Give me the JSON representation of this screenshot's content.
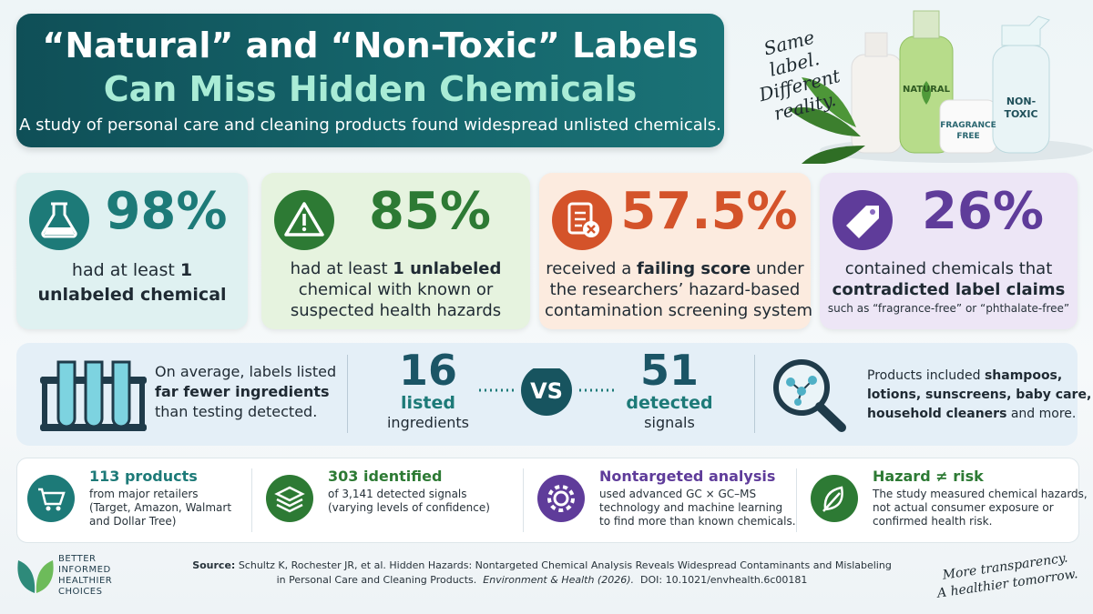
{
  "header": {
    "title_line1": "“Natural” and “Non-Toxic” Labels",
    "title_line2": "Can Miss Hidden Chemicals",
    "subtitle": "A study of personal care and cleaning products found widespread unlisted chemicals."
  },
  "hero": {
    "tagline": [
      "Same label.",
      "Different",
      "reality."
    ],
    "bottle_labels": [
      "NATURAL",
      "FRAGRANCE",
      "FREE",
      "NON-",
      "TOXIC"
    ]
  },
  "stats": [
    {
      "value": "98%",
      "color": "#1d7a78",
      "background": "#dff1f1",
      "lines": [
        [
          {
            "text": "had at least ",
            "bold": false
          },
          {
            "text": "1",
            "bold": true
          }
        ],
        [
          {
            "text": "unlabeled chemical",
            "bold": true
          }
        ]
      ]
    },
    {
      "value": "85%",
      "color": "#2d7a34",
      "background": "#e6f3df",
      "lines": [
        [
          {
            "text": "had at least ",
            "bold": false
          },
          {
            "text": "1 unlabeled",
            "bold": true
          }
        ],
        [
          {
            "text": "chemical with known or",
            "bold": false
          }
        ],
        [
          {
            "text": "suspected health hazards",
            "bold": false
          }
        ]
      ]
    },
    {
      "value": "57.5%",
      "color": "#d4532a",
      "background": "#fcebdf",
      "lines": [
        [
          {
            "text": "received a ",
            "bold": false
          },
          {
            "text": "failing score",
            "bold": true
          },
          {
            "text": " under",
            "bold": false
          }
        ],
        [
          {
            "text": "the researchers’ hazard-based",
            "bold": false
          }
        ],
        [
          {
            "text": "contamination screening system",
            "bold": false
          }
        ]
      ]
    },
    {
      "value": "26%",
      "color": "#5f3c9a",
      "background": "#ede6f6",
      "lines": [
        [
          {
            "text": "contained chemicals that",
            "bold": false
          }
        ],
        [
          {
            "text": "contradicted label claims",
            "bold": true
          }
        ]
      ],
      "note": "such as “fragrance-free” or “phthalate-free”"
    }
  ],
  "comparison": {
    "left": [
      [
        {
          "text": "On average, labels listed",
          "bold": false
        }
      ],
      [
        {
          "text": "far fewer ingredients",
          "bold": true
        }
      ],
      [
        {
          "text": "than testing detected.",
          "bold": false
        }
      ]
    ],
    "listed": {
      "value": "16",
      "label1": "listed",
      "label2": "ingredients"
    },
    "vs": "VS",
    "detected": {
      "value": "51",
      "label1": "detected",
      "label2": "signals"
    },
    "right": [
      [
        {
          "text": "Products included ",
          "bold": false
        },
        {
          "text": "shampoos,",
          "bold": true
        }
      ],
      [
        {
          "text": "lotions, sunscreens, baby care,",
          "bold": true
        }
      ],
      [
        {
          "text": "household cleaners",
          "bold": true
        },
        {
          "text": " and more.",
          "bold": false
        }
      ]
    ]
  },
  "facts": [
    {
      "title": "113 products",
      "color": "#1d7a78",
      "lines": [
        "from major retailers",
        "(Target, Amazon, Walmart",
        "and Dollar Tree)"
      ]
    },
    {
      "title": "303 identified",
      "color": "#2d7a34",
      "lines": [
        "of 3,141 detected signals",
        "(varying levels of confidence)"
      ]
    },
    {
      "title": "Nontargeted analysis",
      "color": "#5f3c9a",
      "lines": [
        "used advanced GC × GC–MS",
        "technology and machine learning",
        "to find more than known chemicals."
      ]
    },
    {
      "title": "Hazard ≠ risk",
      "color": "#2d7a34",
      "lines": [
        "The study measured chemical hazards,",
        "not actual consumer exposure or",
        "confirmed health risk."
      ]
    }
  ],
  "footer": {
    "logo": [
      "BETTER",
      "INFORMED",
      "HEALTHIER",
      "CHOICES"
    ],
    "source_label": "Source:",
    "source_line1": "Schultz K, Rochester JR, et al. Hidden Hazards: Nontargeted Chemical Analysis Reveals Widespread Contaminants and Mislabeling",
    "source_line2": "in Personal Care and Cleaning Products.",
    "journal": "Environment & Health (2026).",
    "doi": "DOI: 10.1021/envhealth.6c00181",
    "closing": [
      "More transparency.",
      "A healthier tomorrow."
    ]
  }
}
